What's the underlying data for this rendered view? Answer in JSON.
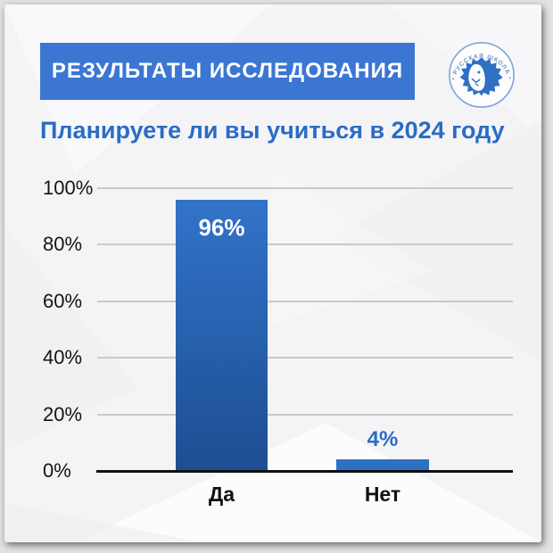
{
  "header": {
    "badge_label": "РЕЗУЛЬТАТЫ ИССЛЕДОВАНИЯ",
    "logo": {
      "top_text": "• РУССКАЯ ШКОЛА •",
      "bottom_text": "УПРАВЛЕНИЯ"
    }
  },
  "title": "Планируете ли вы учиться в 2024 году",
  "chart_data": {
    "type": "bar",
    "title": "Планируете ли вы учиться в 2024 году",
    "categories": [
      "Да",
      "Нет"
    ],
    "values": [
      96,
      4
    ],
    "value_labels": [
      "96%",
      "4%"
    ],
    "xlabel": "",
    "ylabel": "",
    "ylim": [
      0,
      100
    ],
    "yticks": [
      "100%",
      "80%",
      "60%",
      "40%",
      "20%",
      "0%"
    ],
    "grid": true,
    "legend": "none"
  },
  "colors": {
    "badge_bg": "#3b76d3",
    "badge_text": "#ffffff",
    "title_text": "#2a6cc5",
    "bar_gradient_top": "#3273c9",
    "bar_gradient_bottom": "#1d4e92",
    "small_bar": "#2e70c4",
    "value_label_inside": "#ffffff",
    "value_label_above": "#2b6cc7",
    "axis": "#101010",
    "gridline": "#c9c9cc",
    "tick_text": "#141414",
    "logo_blue": "#2f70c5",
    "logo_light_blue": "#6e94ca",
    "card_bg": "#f4f4f6"
  }
}
